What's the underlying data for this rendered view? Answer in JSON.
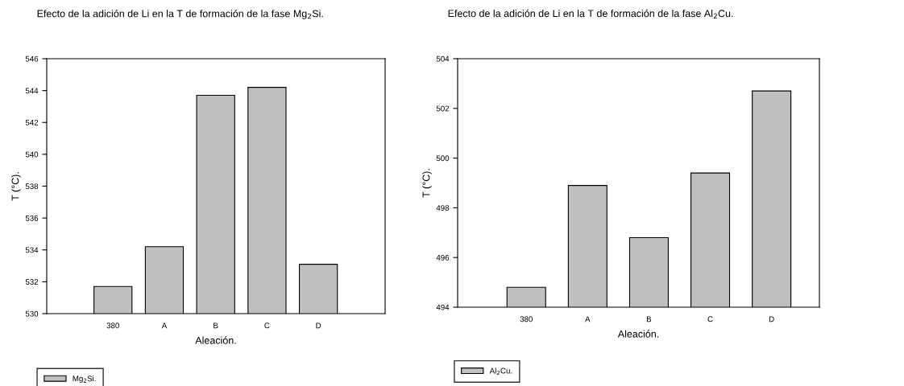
{
  "chart_data": [
    {
      "type": "bar",
      "title": "Efecto de la adición de Li en la T de formación de la fase Mg$_{2}$Si.",
      "xlabel": "Aleación.",
      "ylabel": "T (°C).",
      "categories": [
        "380",
        "A",
        "B",
        "C",
        "D"
      ],
      "series": [
        {
          "name": "Mg$_{2}$Si.",
          "color": "#c0c0c0",
          "values": [
            531.7,
            534.2,
            543.7,
            544.2,
            533.1
          ]
        }
      ],
      "ylim": [
        530,
        546
      ],
      "yticks": [
        530,
        532,
        534,
        536,
        538,
        540,
        542,
        544,
        546
      ],
      "grid": false,
      "legend": "bottom left"
    },
    {
      "type": "bar",
      "title": "Efecto de la adición de Li en la T de formación de la fase Al$_{2}$Cu.",
      "xlabel": "Aleación.",
      "ylabel": "T (°C).",
      "categories": [
        "380",
        "A",
        "B",
        "C",
        "D"
      ],
      "series": [
        {
          "name": "Al$_{2}$Cu.",
          "color": "#c0c0c0",
          "values": [
            494.8,
            498.9,
            496.8,
            499.4,
            502.7
          ]
        }
      ],
      "ylim": [
        494,
        504
      ],
      "yticks": [
        494,
        496,
        498,
        500,
        502,
        504
      ],
      "grid": false,
      "legend": "bottom left"
    }
  ]
}
